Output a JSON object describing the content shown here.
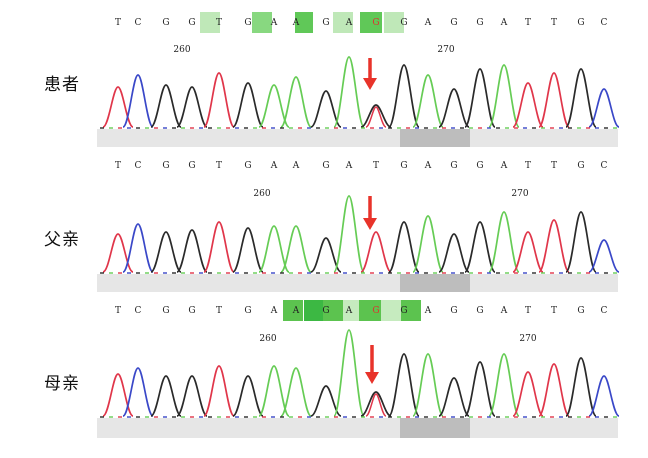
{
  "figure": {
    "samples": [
      {
        "label": "患者",
        "sequence": [
          "T",
          "C",
          "G",
          "G",
          "T",
          "G",
          "A",
          "A",
          "G",
          "A",
          "G",
          "G",
          "A",
          "G",
          "G",
          "A",
          "T",
          "T",
          "G",
          "C"
        ],
        "position_markers": [
          "260",
          "270"
        ],
        "highlight_color": "#7ed07a",
        "variant_base_color": "#e03030",
        "arrow_color": "#e8332a"
      },
      {
        "label": "父亲",
        "sequence": [
          "T",
          "C",
          "G",
          "G",
          "T",
          "G",
          "A",
          "A",
          "G",
          "A",
          "T",
          "G",
          "A",
          "G",
          "G",
          "A",
          "T",
          "T",
          "G",
          "C"
        ],
        "position_markers": [
          "260",
          "270"
        ],
        "arrow_color": "#e8332a"
      },
      {
        "label": "母亲",
        "sequence": [
          "T",
          "C",
          "G",
          "G",
          "T",
          "G",
          "A",
          "A",
          "G",
          "A",
          "G",
          "G",
          "A",
          "G",
          "G",
          "A",
          "T",
          "T",
          "G",
          "C"
        ],
        "position_markers": [
          "260",
          "270"
        ],
        "highlight_color": "#3cb843",
        "variant_base_color": "#e03030",
        "arrow_color": "#e8332a"
      }
    ],
    "trace_colors": {
      "G": "#2a2a2a",
      "A": "#66cc55",
      "T": "#e0364a",
      "C": "#3a48c8"
    }
  }
}
